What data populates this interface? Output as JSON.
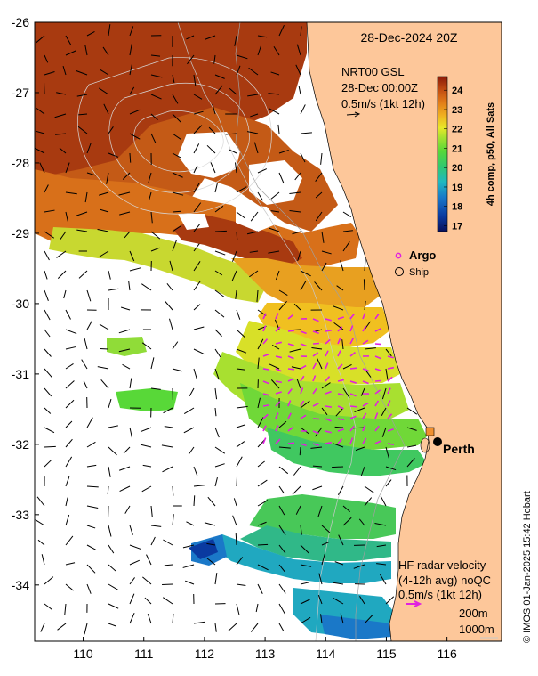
{
  "title": "28-Dec-2024 20Z",
  "axes": {
    "x_ticks": [
      "110",
      "111",
      "112",
      "113",
      "114",
      "115",
      "116"
    ],
    "y_ticks": [
      "-26",
      "-27",
      "-28",
      "-29",
      "-30",
      "-31",
      "-32",
      "-33",
      "-34"
    ],
    "xlim": [
      109.2,
      116.9
    ],
    "ylim": [
      -34.8,
      -26
    ]
  },
  "colorbar": {
    "label": "4h comp, p50, All Sats",
    "ticks": [
      "24",
      "23",
      "22",
      "21",
      "20",
      "19",
      "18",
      "17"
    ],
    "range": [
      16.7,
      24.7
    ],
    "colors": [
      "#08105a",
      "#0a3aa0",
      "#1a78c8",
      "#20b8c0",
      "#30c870",
      "#58d838",
      "#a0e030",
      "#e8e828",
      "#f0b020",
      "#e07818",
      "#c04a10",
      "#8a1a08"
    ]
  },
  "geostrophic": {
    "line1": "NRT00 GSL",
    "line2": "28-Dec 00:00Z",
    "line3": "0.5m/s (1kt 12h)"
  },
  "legend": {
    "argo": "Argo",
    "ship": "Ship",
    "argo_color": "#e020e0"
  },
  "places": {
    "perth": "Perth"
  },
  "hf_radar": {
    "line1": "HF radar velocity",
    "line2": "(4-12h avg) noQC",
    "line3": "0.5m/s (1kt 12h)",
    "color": "#e020e0"
  },
  "isobaths": {
    "label1": "200m",
    "label2": "1000m"
  },
  "credit": "© IMOS 01-Jan-2025 15:42 Hobart",
  "colors": {
    "land": "#fdc79a",
    "frame": "#000000"
  }
}
